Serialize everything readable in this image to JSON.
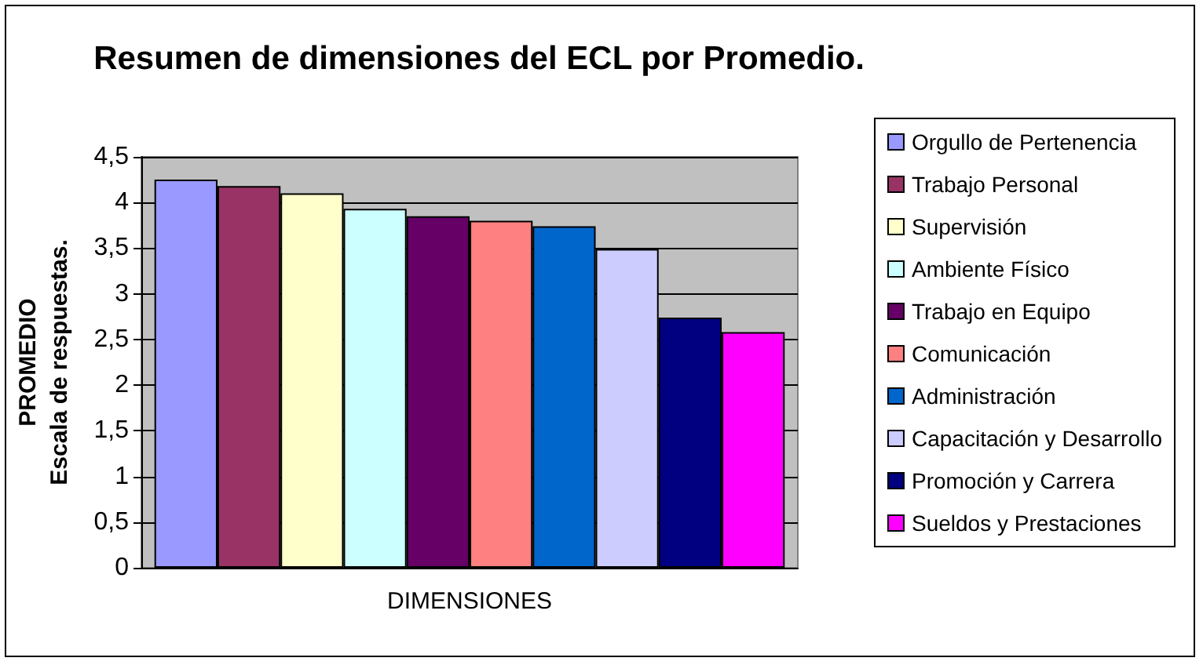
{
  "chart_data": {
    "type": "bar",
    "title": "Resumen de dimensiones del ECL por Promedio.",
    "xlabel": "DIMENSIONES",
    "ylabel": "PROMEDIO\nEscala de respuestas.",
    "categories": [
      null
    ],
    "series": [
      {
        "name": "Orgullo de Pertenencia",
        "color": "#9999ff",
        "values": [
          4.25
        ]
      },
      {
        "name": "Trabajo Personal",
        "color": "#993366",
        "values": [
          4.18
        ]
      },
      {
        "name": "Supervisión",
        "color": "#ffffcc",
        "values": [
          4.1
        ]
      },
      {
        "name": "Ambiente Físico",
        "color": "#ccffff",
        "values": [
          3.93
        ]
      },
      {
        "name": "Trabajo en Equipo",
        "color": "#660066",
        "values": [
          3.85
        ]
      },
      {
        "name": "Comunicación",
        "color": "#ff8080",
        "values": [
          3.8
        ]
      },
      {
        "name": "Administración",
        "color": "#0066cc",
        "values": [
          3.74
        ]
      },
      {
        "name": "Capacitación y Desarrollo",
        "color": "#ccccff",
        "values": [
          3.49
        ]
      },
      {
        "name": "Promoción y Carrera",
        "color": "#000080",
        "values": [
          2.74
        ]
      },
      {
        "name": "Sueldos y Prestaciones",
        "color": "#ff00ff",
        "values": [
          2.58
        ]
      }
    ],
    "ylim": [
      0,
      4.5
    ],
    "yticks": [
      {
        "value": 0,
        "label": "0"
      },
      {
        "value": 0.5,
        "label": "0,5"
      },
      {
        "value": 1,
        "label": "1"
      },
      {
        "value": 1.5,
        "label": "1,5"
      },
      {
        "value": 2,
        "label": "2"
      },
      {
        "value": 2.5,
        "label": "2,5"
      },
      {
        "value": 3,
        "label": "3"
      },
      {
        "value": 3.5,
        "label": "3,5"
      },
      {
        "value": 4,
        "label": "4"
      },
      {
        "value": 4.5,
        "label": "4,5"
      }
    ],
    "grid": "y",
    "legend": "right"
  }
}
